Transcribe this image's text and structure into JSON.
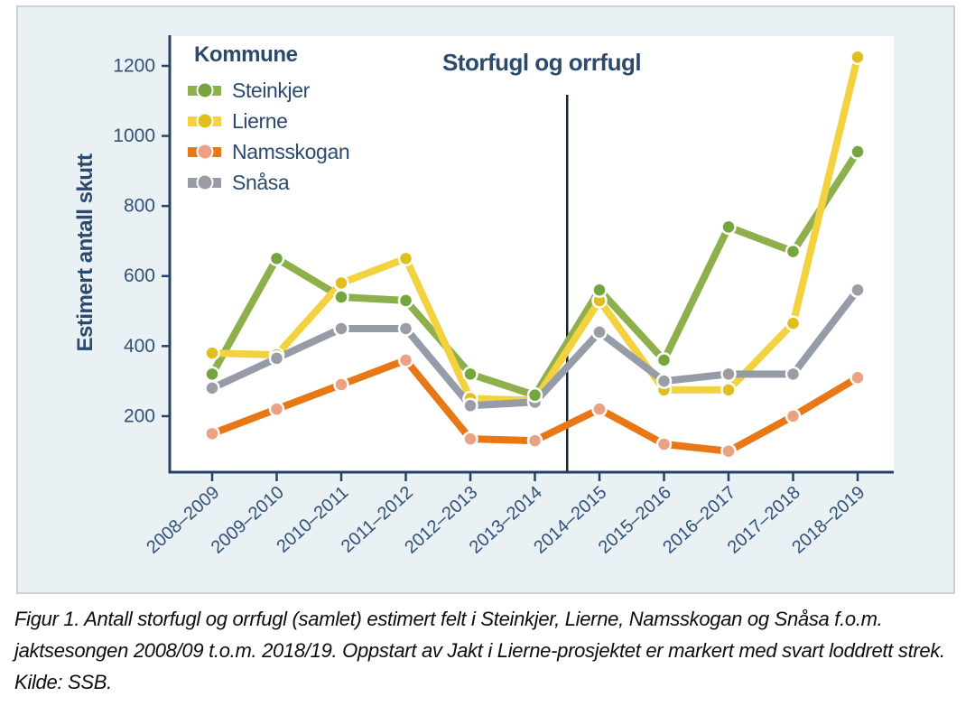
{
  "figure": {
    "caption": "Figur 1. Antall storfugl og orrfugl (samlet) estimert felt i Steinkjer, Lierne, Namsskogan og Snåsa f.o.m. jaktsesongen 2008/09 t.o.m. 2018/19. Oppstart av Jakt i Lierne-prosjektet er markert med svart loddrett strek. Kilde: SSB."
  },
  "chart_data": {
    "type": "line",
    "title": "Storfugl og orrfugl",
    "legend_title": "Kommune",
    "ylabel": "Estimert antall skutt",
    "xlabel": "",
    "grid": false,
    "legend_position": "upper-left-inside",
    "categories": [
      "2008–2009",
      "2009–2010",
      "2010–2011",
      "2011–2012",
      "2012–2013",
      "2013–2014",
      "2014–2015",
      "2015–2016",
      "2016–2017",
      "2017–2018",
      "2018–2019"
    ],
    "series": [
      {
        "name": "Steinkjer",
        "line_color": "#8db04c",
        "marker_color": "#74a53e",
        "line_zorder": 0,
        "marker_zorder": 3,
        "values": [
          320,
          650,
          540,
          530,
          320,
          260,
          560,
          360,
          740,
          670,
          955
        ]
      },
      {
        "name": "Lierne",
        "line_color": "#f3d23f",
        "marker_color": "#e0be1e",
        "line_zorder": 1,
        "marker_zorder": 0,
        "values": [
          380,
          375,
          580,
          650,
          250,
          245,
          530,
          275,
          275,
          465,
          1225
        ]
      },
      {
        "name": "Namsskogan",
        "line_color": "#e87816",
        "marker_color": "#eda183",
        "line_zorder": 2,
        "marker_zorder": 1,
        "values": [
          150,
          220,
          290,
          360,
          135,
          130,
          220,
          120,
          100,
          200,
          310
        ]
      },
      {
        "name": "Snåsa",
        "line_color": "#959ca7",
        "marker_color": "#9b9ca4",
        "line_zorder": 3,
        "marker_zorder": 2,
        "values": [
          280,
          365,
          450,
          450,
          230,
          240,
          440,
          300,
          320,
          320,
          560
        ]
      }
    ],
    "yticks": [
      200,
      400,
      600,
      800,
      1000,
      1200
    ],
    "ylim": [
      40,
      1285
    ],
    "annotation": {
      "type": "vertical-line",
      "between_categories": [
        "2013–2014",
        "2014–2015"
      ],
      "x_index": 5.5,
      "color": "#17263e"
    },
    "colors": {
      "axis": "#26406b",
      "tick_labels": "#31507a",
      "title_text": "#2b4a6e",
      "panel_background": "#e9f1f4",
      "panel_border": "#c9d2d8",
      "plot_background": "#ffffff",
      "marker_ring": "#fcfdfd"
    }
  }
}
